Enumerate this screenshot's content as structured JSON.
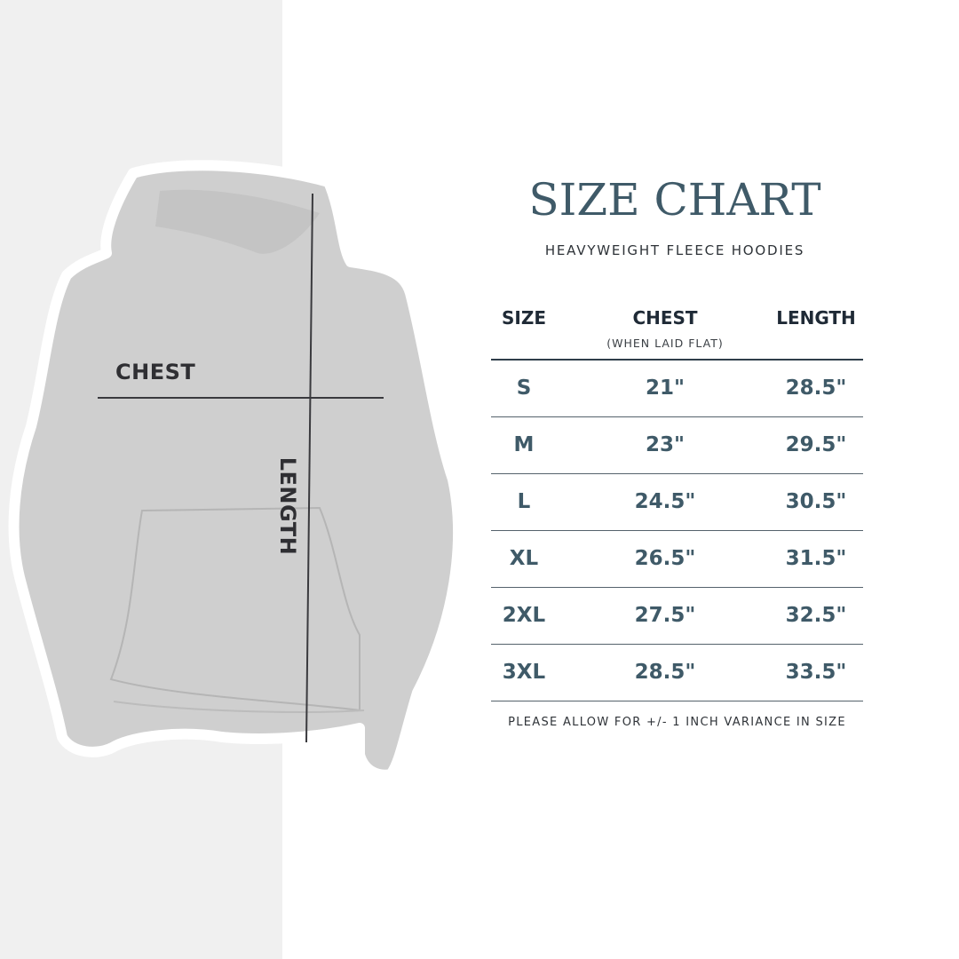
{
  "title": "SIZE CHART",
  "subtitle": "HEAVYWEIGHT FLEECE HOODIES",
  "image_labels": {
    "chest": "CHEST",
    "length": "LENGTH"
  },
  "table": {
    "headers": {
      "size": "SIZE",
      "chest": "CHEST",
      "chest_note": "(WHEN LAID FLAT)",
      "length": "LENGTH"
    },
    "rows": [
      {
        "size": "S",
        "chest": "21\"",
        "length": "28.5\""
      },
      {
        "size": "M",
        "chest": "23\"",
        "length": "29.5\""
      },
      {
        "size": "L",
        "chest": "24.5\"",
        "length": "30.5\""
      },
      {
        "size": "XL",
        "chest": "26.5\"",
        "length": "31.5\""
      },
      {
        "size": "2XL",
        "chest": "27.5\"",
        "length": "32.5\""
      },
      {
        "size": "3XL",
        "chest": "28.5\"",
        "length": "33.5\""
      }
    ]
  },
  "footnote": "PLEASE ALLOW FOR +/- 1 INCH VARIANCE IN SIZE",
  "colors": {
    "accent": "#3f5a68",
    "heading": "#1f2a36",
    "hoodie": "#cfcfcf",
    "left_panel": "#f0f0f0"
  }
}
